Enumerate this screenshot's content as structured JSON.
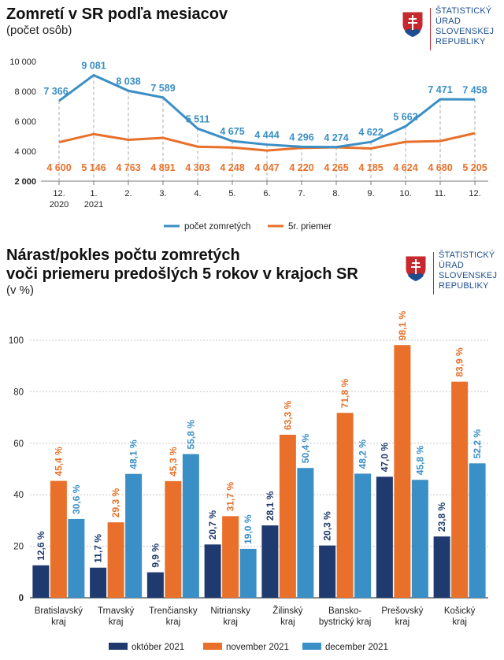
{
  "chart1": {
    "title": "Zomretí v SR podľa mesiacov",
    "subtitle": "(počet osôb)",
    "logo_lines": [
      "ŠTATISTICKÝ",
      "ÚRAD",
      "SLOVENSKEJ",
      "REPUBLIKY"
    ]
  },
  "chart2": {
    "title_line1": "Nárast/pokles počtu zomretých",
    "title_line2": "voči priemeru predošlých 5 rokov v krajoch SR",
    "subtitle": "(v %)",
    "logo_lines": [
      "ŠTATISTICKÝ",
      "ÚRAD",
      "SLOVENSKEJ",
      "REPUBLIKY"
    ]
  },
  "colors": {
    "blue_line": "#3a8fc6",
    "orange": "#e8702a",
    "navy": "#1f3a6e",
    "light_blue": "#3a8fc6",
    "logo_red": "#c7282e",
    "logo_blue": "#1c4e8f"
  },
  "chart_data": [
    {
      "type": "line",
      "categories": [
        "12.\n2020",
        "1.\n2021",
        "2.",
        "3.",
        "4.",
        "5.",
        "6.",
        "7.",
        "8.",
        "9.",
        "10.",
        "11.",
        "12."
      ],
      "series": [
        {
          "name": "počet zomretých",
          "values": [
            7366,
            9081,
            8038,
            7589,
            5511,
            4675,
            4444,
            4296,
            4274,
            4622,
            5662,
            7471,
            7458
          ],
          "labels": [
            "7 366",
            "9 081",
            "8 038",
            "7 589",
            "5 511",
            "4 675",
            "4 444",
            "4 296",
            "4 274",
            "4 622",
            "5 662",
            "7 471",
            "7 458"
          ]
        },
        {
          "name": "5r. priemer",
          "values": [
            4600,
            5146,
            4763,
            4891,
            4303,
            4248,
            4047,
            4220,
            4265,
            4185,
            4624,
            4680,
            5205
          ],
          "labels": [
            "4 600",
            "5 146",
            "4 763",
            "4 891",
            "4 303",
            "4 248",
            "4 047",
            "4 220",
            "4 265",
            "4 185",
            "4 624",
            "4 680",
            "5 205"
          ]
        }
      ],
      "yticks": [
        "2 000",
        "4 000",
        "6 000",
        "8 000",
        "10 000"
      ],
      "ytick_values": [
        2000,
        4000,
        6000,
        8000,
        10000
      ],
      "ylim": [
        2000,
        10000
      ]
    },
    {
      "type": "bar",
      "categories": [
        "Bratislavský\nkraj",
        "Trnavský\nkraj",
        "Trenčiansky\nkraj",
        "Nitriansky\nkraj",
        "Žilinský\nkraj",
        "Bansko-\nbystrický kraj",
        "Prešovský\nkraj",
        "Košický\nkraj"
      ],
      "series": [
        {
          "name": "október 2021",
          "values": [
            12.6,
            11.7,
            9.9,
            20.7,
            28.1,
            20.3,
            47.0,
            23.8
          ],
          "labels": [
            "12,6 %",
            "11,7 %",
            "9,9 %",
            "20,7 %",
            "28,1 %",
            "20,3 %",
            "47,0 %",
            "23,8 %"
          ]
        },
        {
          "name": "november 2021",
          "values": [
            45.4,
            29.3,
            45.3,
            31.7,
            63.3,
            71.8,
            98.1,
            83.9
          ],
          "labels": [
            "45,4 %",
            "29,3 %",
            "45,3 %",
            "31,7 %",
            "63,3 %",
            "71,8 %",
            "98,1 %",
            "83,9 %"
          ]
        },
        {
          "name": "december 2021",
          "values": [
            30.6,
            48.1,
            55.8,
            19.0,
            50.4,
            48.2,
            45.8,
            52.2
          ],
          "labels": [
            "30,6 %",
            "48,1 %",
            "55,8 %",
            "19,0 %",
            "50,4 %",
            "48,2 %",
            "45,8 %",
            "52,2 %"
          ]
        }
      ],
      "yticks": [
        "0",
        "20",
        "40",
        "60",
        "80",
        "100"
      ],
      "ytick_values": [
        0,
        20,
        40,
        60,
        80,
        100
      ],
      "ylim": [
        0,
        100
      ]
    }
  ]
}
